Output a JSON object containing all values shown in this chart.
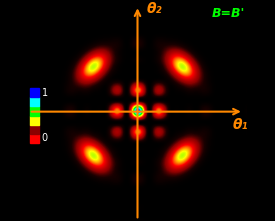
{
  "background_color": "#000000",
  "axis_color": "#ff8800",
  "label_theta1": "θ₁",
  "label_theta2": "θ₂",
  "annotation": "B=B'",
  "annotation_color": "#00ff00",
  "figsize": [
    2.75,
    2.21
  ],
  "dpi": 100,
  "cmap_nodes": [
    [
      0.0,
      "#000000"
    ],
    [
      0.04,
      "#1a0000"
    ],
    [
      0.12,
      "#8b0000"
    ],
    [
      0.3,
      "#ff0000"
    ],
    [
      0.5,
      "#ffff00"
    ],
    [
      0.68,
      "#00ff00"
    ],
    [
      0.82,
      "#00ffff"
    ],
    [
      1.0,
      "#0000ff"
    ]
  ],
  "cbar_colors": [
    "#ff0000",
    "#8b0000",
    "#ffff00",
    "#00ff00",
    "#00ffff",
    "#0000ff"
  ],
  "xlim": [
    -4.5,
    4.5
  ],
  "ylim": [
    -4.5,
    4.5
  ]
}
